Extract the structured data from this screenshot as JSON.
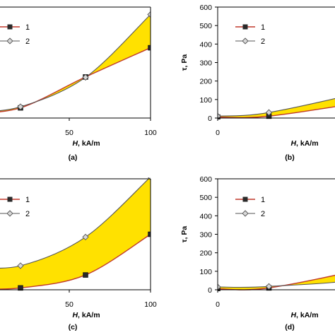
{
  "chart_data": [
    {
      "type": "line",
      "panel": "(a)",
      "xlabel_italic": "H",
      "xlabel_rest": ", kA/m",
      "ylabel": "",
      "xlim": [
        -10,
        100
      ],
      "ylim": [
        0,
        600
      ],
      "xticks": [
        "50",
        "100"
      ],
      "xtick_values": [
        50,
        100
      ],
      "yticks": [],
      "ytick_values": [],
      "x": [
        -10,
        20,
        60,
        100
      ],
      "series": [
        {
          "name": "1",
          "values": [
            28,
            55,
            222,
            380
          ]
        },
        {
          "name": "2",
          "values": [
            32,
            61,
            220,
            560
          ]
        }
      ],
      "fill_color": "#FFE100"
    },
    {
      "type": "line",
      "panel": "(b)",
      "xlabel_italic": "H",
      "xlabel_rest": ", kA/m",
      "ylabel": "τ, Pa",
      "xlim": [
        0,
        75
      ],
      "ylim": [
        0,
        600
      ],
      "xticks": [
        "0",
        "50"
      ],
      "xtick_values": [
        0,
        50
      ],
      "yticks": [
        "0",
        "100",
        "200",
        "300",
        "400",
        "500",
        "600"
      ],
      "ytick_values": [
        0,
        100,
        200,
        300,
        400,
        500,
        600
      ],
      "x": [
        0,
        20,
        60,
        80
      ],
      "series": [
        {
          "name": "1",
          "values": [
            5,
            10,
            95,
            160
          ]
        },
        {
          "name": "2",
          "values": [
            10,
            30,
            155,
            260
          ]
        }
      ],
      "fill_color": "#FFE100"
    },
    {
      "type": "line",
      "panel": "(c)",
      "xlabel_italic": "H",
      "xlabel_rest": ", kA/m",
      "ylabel": "",
      "xlim": [
        -10,
        100
      ],
      "ylim": [
        0,
        600
      ],
      "xticks": [
        "50",
        "100"
      ],
      "xtick_values": [
        50,
        100
      ],
      "yticks": [],
      "ytick_values": [],
      "x": [
        -10,
        20,
        60,
        100
      ],
      "series": [
        {
          "name": "1",
          "values": [
            5,
            10,
            80,
            300
          ]
        },
        {
          "name": "2",
          "values": [
            125,
            130,
            285,
            610
          ]
        }
      ],
      "fill_color": "#FFE100"
    },
    {
      "type": "line",
      "panel": "(d)",
      "xlabel_italic": "H",
      "xlabel_rest": ", kA/m",
      "ylabel": "τ, Pa",
      "xlim": [
        0,
        75
      ],
      "ylim": [
        0,
        600
      ],
      "xticks": [
        "0",
        "50"
      ],
      "xtick_values": [
        0,
        50
      ],
      "yticks": [
        "0",
        "100",
        "200",
        "300",
        "400",
        "500",
        "600"
      ],
      "ytick_values": [
        0,
        100,
        200,
        300,
        400,
        500,
        600
      ],
      "x": [
        0,
        20,
        60,
        80
      ],
      "series": [
        {
          "name": "1",
          "values": [
            5,
            10,
            125,
            230
          ]
        },
        {
          "name": "2",
          "values": [
            15,
            18,
            70,
            230
          ]
        }
      ],
      "fill_color": "#FFE100"
    }
  ]
}
